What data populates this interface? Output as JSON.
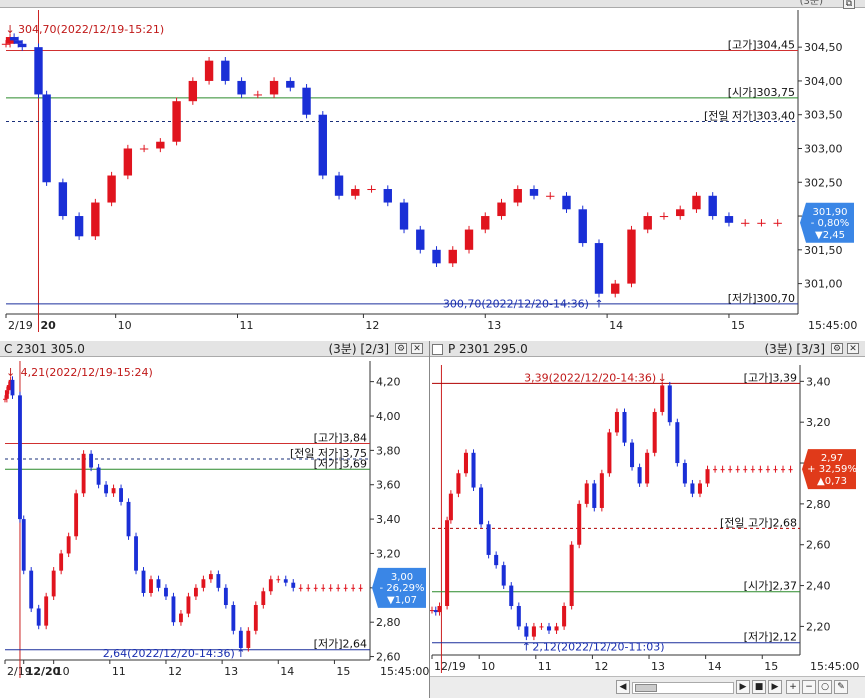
{
  "colors": {
    "up": "#e0141e",
    "down": "#1a2fd6",
    "blue_line": "#1a2f9c",
    "red_line": "#d03030",
    "green_line": "#2a8a2a",
    "dark_red_line": "#b00000"
  },
  "top": {
    "header_right": "(3분)",
    "x_ticks": [
      {
        "label": "2/19",
        "x": 0
      },
      {
        "label": "20",
        "x": 8
      },
      {
        "label": "10",
        "x": 27
      },
      {
        "label": "11",
        "x": 57
      },
      {
        "label": "12",
        "x": 88
      },
      {
        "label": "13",
        "x": 118
      },
      {
        "label": "14",
        "x": 148
      },
      {
        "label": "15",
        "x": 178
      }
    ],
    "bold_tick": "20",
    "corner_time": "15:45:00",
    "high_marker": "304,70(2022/12/19-15:21)",
    "low_marker": "300,70(2022/12/20-14:36)",
    "lines": [
      {
        "label": "[고가]304,45",
        "value": 304.45,
        "color": "red"
      },
      {
        "label": "[시가]303,75",
        "value": 303.75,
        "color": "green"
      },
      {
        "label": "[전일 저가]303,40",
        "value": 303.4,
        "color": "dashed"
      },
      {
        "label": "[저가]300,70",
        "value": 300.7,
        "color": "blue"
      }
    ],
    "price_badge": {
      "price": "301,90",
      "pct": "- 0,80%",
      "change": "▼2,45",
      "direction": "down",
      "value": 301.9
    }
  },
  "bottom_left": {
    "title": "C 2301 305.0",
    "header_right": "(3분) [2/3]",
    "x_ticks": [
      {
        "label": "2/19",
        "x": 0
      },
      {
        "label": "12/20",
        "x": 10
      },
      {
        "label": "10",
        "x": 26
      },
      {
        "label": "11",
        "x": 56
      },
      {
        "label": "12",
        "x": 86
      },
      {
        "label": "13",
        "x": 116
      },
      {
        "label": "14",
        "x": 146
      },
      {
        "label": "15",
        "x": 176
      }
    ],
    "bold_tick": "12/20",
    "corner_time": "15:45:00",
    "high_marker": "4,21(2022/12/19-15:24)",
    "low_marker": "2,64(2022/12/20-14:36)",
    "lines": [
      {
        "label": "[고가]3,84",
        "value": 3.84,
        "color": "red"
      },
      {
        "label": "[전일 저가]3,75",
        "value": 3.75,
        "color": "dashed"
      },
      {
        "label": "[저가]3,69",
        "value": 3.69,
        "color": "green"
      },
      {
        "label": "[저가]2,64",
        "value": 2.64,
        "color": "blue"
      }
    ],
    "price_badge": {
      "price": "3,00",
      "pct": "- 26,29%",
      "change": "▼1,07",
      "direction": "down",
      "value": 3.0
    }
  },
  "bottom_right": {
    "title": "P 2301 295.0",
    "header_right": "(3분) [3/3]",
    "x_ticks": [
      {
        "label": "12/19",
        "x": 0
      },
      {
        "label": "10",
        "x": 25
      },
      {
        "label": "11",
        "x": 55
      },
      {
        "label": "12",
        "x": 85
      },
      {
        "label": "13",
        "x": 115
      },
      {
        "label": "14",
        "x": 145
      },
      {
        "label": "15",
        "x": 175
      }
    ],
    "corner_time": "15:45:00",
    "high_marker": "3,39(2022/12/20-14:36)",
    "low_marker": "2,12(2022/12/20-11:03)",
    "lines": [
      {
        "label": "[고가]3,39",
        "value": 3.39,
        "color": "darkred"
      },
      {
        "label": "[전일 고가]2,68",
        "value": 2.68,
        "color": "dasheddarkred"
      },
      {
        "label": "[시가]2,37",
        "value": 2.37,
        "color": "green"
      },
      {
        "label": "[저가]2,12",
        "value": 2.12,
        "color": "blue"
      }
    ],
    "price_badge": {
      "price": "2,97",
      "pct": "+ 32,59%",
      "change": "▲0,73",
      "direction": "up",
      "value": 2.97
    }
  },
  "chart_data": [
    {
      "type": "candlestick",
      "title": "",
      "x_domain": [
        0,
        195
      ],
      "ylim": [
        300.55,
        305.05
      ],
      "y_ticks": [
        "301,00",
        "301,50",
        "302,00",
        "302,50",
        "303,00",
        "303,50",
        "304,00",
        "304,50"
      ],
      "y_tick_values": [
        301.0,
        301.5,
        302.0,
        302.5,
        303.0,
        303.5,
        304.0,
        304.5
      ],
      "x": [
        0,
        1,
        2,
        3,
        4,
        8,
        10,
        14,
        18,
        22,
        26,
        30,
        34,
        38,
        42,
        46,
        50,
        54,
        58,
        62,
        66,
        70,
        74,
        78,
        82,
        86,
        90,
        94,
        98,
        102,
        106,
        110,
        114,
        118,
        122,
        126,
        130,
        134,
        138,
        142,
        146,
        150,
        154,
        158,
        162,
        166,
        170,
        174,
        178,
        182,
        186,
        190
      ],
      "close": [
        304.55,
        304.65,
        304.6,
        304.55,
        304.5,
        303.8,
        302.5,
        302.0,
        301.7,
        302.2,
        302.6,
        303.0,
        303.0,
        303.1,
        303.7,
        304.0,
        304.3,
        304.0,
        303.8,
        303.8,
        304.0,
        303.9,
        303.5,
        302.6,
        302.3,
        302.4,
        302.4,
        302.2,
        301.8,
        301.5,
        301.3,
        301.5,
        301.8,
        302.0,
        302.2,
        302.4,
        302.3,
        302.3,
        302.1,
        301.6,
        300.85,
        301.0,
        301.8,
        302.0,
        302.0,
        302.1,
        302.3,
        302.0,
        301.9,
        301.9,
        301.9,
        301.9
      ]
    },
    {
      "type": "candlestick",
      "title": "",
      "x_domain": [
        0,
        195
      ],
      "ylim": [
        2.58,
        4.32
      ],
      "y_ticks": [
        "2,60",
        "2,80",
        "3,00",
        "3,20",
        "3,40",
        "3,60",
        "3,80",
        "4,00",
        "4,20"
      ],
      "y_tick_values": [
        2.6,
        2.8,
        3.0,
        3.2,
        3.4,
        3.6,
        3.8,
        4.0,
        4.2
      ],
      "x": [
        0,
        1,
        2,
        3,
        4,
        8,
        10,
        14,
        18,
        22,
        26,
        30,
        34,
        38,
        42,
        46,
        50,
        54,
        58,
        62,
        66,
        70,
        74,
        78,
        82,
        86,
        90,
        94,
        98,
        102,
        106,
        110,
        114,
        118,
        122,
        126,
        130,
        134,
        138,
        142,
        146,
        150,
        154,
        158,
        162,
        166,
        170,
        174,
        178,
        182,
        186,
        190
      ],
      "close": [
        4.1,
        4.15,
        4.18,
        4.21,
        4.12,
        3.4,
        3.1,
        2.88,
        2.78,
        2.95,
        3.1,
        3.2,
        3.3,
        3.55,
        3.78,
        3.7,
        3.6,
        3.55,
        3.58,
        3.5,
        3.3,
        3.1,
        2.97,
        3.05,
        3.0,
        2.95,
        2.8,
        2.85,
        2.95,
        3.0,
        3.05,
        3.08,
        3.0,
        2.9,
        2.75,
        2.65,
        2.75,
        2.9,
        2.98,
        3.05,
        3.05,
        3.03,
        3.0,
        3.0,
        3.0,
        3.0,
        3.0,
        3.0,
        3.0,
        3.0,
        3.0,
        3.0
      ]
    },
    {
      "type": "candlestick",
      "title": "",
      "x_domain": [
        0,
        195
      ],
      "ylim": [
        2.06,
        3.48
      ],
      "y_ticks": [
        "2,20",
        "2,40",
        "2,60",
        "2,80",
        "3,00",
        "3,20",
        "3,40"
      ],
      "y_tick_values": [
        2.2,
        2.4,
        2.6,
        2.8,
        3.0,
        3.2,
        3.4
      ],
      "x": [
        0,
        2,
        4,
        8,
        10,
        14,
        18,
        22,
        26,
        30,
        34,
        38,
        42,
        46,
        50,
        54,
        58,
        62,
        66,
        70,
        74,
        78,
        82,
        86,
        90,
        94,
        98,
        102,
        106,
        110,
        114,
        118,
        122,
        126,
        130,
        134,
        138,
        142,
        146,
        150,
        154,
        158,
        162,
        166,
        170,
        174,
        178,
        182,
        186,
        190
      ],
      "close": [
        2.28,
        2.27,
        2.3,
        2.72,
        2.85,
        2.95,
        3.05,
        2.88,
        2.7,
        2.55,
        2.5,
        2.4,
        2.3,
        2.2,
        2.15,
        2.2,
        2.2,
        2.18,
        2.2,
        2.3,
        2.6,
        2.8,
        2.9,
        2.78,
        2.95,
        3.15,
        3.25,
        3.1,
        2.98,
        2.9,
        3.05,
        3.25,
        3.38,
        3.2,
        3.0,
        2.9,
        2.85,
        2.9,
        2.97,
        2.97,
        2.97,
        2.97,
        2.97,
        2.97,
        2.97,
        2.97,
        2.97,
        2.97,
        2.97,
        2.97
      ]
    }
  ]
}
